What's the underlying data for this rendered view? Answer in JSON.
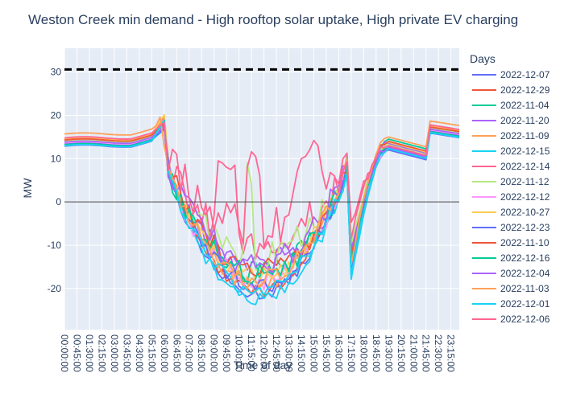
{
  "chart_data": {
    "type": "line",
    "title": "Weston Creek min demand - High rooftop solar uptake, High private EV charging",
    "xlabel": "Time of day",
    "ylabel": "MW",
    "ylim": [
      -29.5,
      35.5
    ],
    "y_ticks": [
      -20,
      -10,
      0,
      10,
      20,
      30
    ],
    "x_tick_labels": [
      "00:00:00",
      "00:45:00",
      "01:30:00",
      "02:15:00",
      "03:00:00",
      "03:45:00",
      "04:30:00",
      "05:15:00",
      "06:00:00",
      "06:45:00",
      "07:30:00",
      "08:15:00",
      "09:00:00",
      "09:45:00",
      "10:30:00",
      "11:15:00",
      "12:00:00",
      "12:45:00",
      "13:30:00",
      "14:15:00",
      "15:00:00",
      "15:45:00",
      "16:30:00",
      "17:15:00",
      "18:00:00",
      "18:45:00",
      "19:30:00",
      "20:15:00",
      "21:00:00",
      "21:45:00",
      "22:30:00",
      "23:15:00"
    ],
    "x_interval_minutes": 15,
    "legend_title": "Days",
    "legend_position": "right",
    "grid": true,
    "reference_line": {
      "y": 30.6,
      "style": "dashed",
      "color": "#000000"
    },
    "zero_line": {
      "y": 0,
      "color": "#444444"
    },
    "series": [
      {
        "name": "2022-12-07",
        "color": "#636efa",
        "base": 12.9,
        "depth": -21.5,
        "eve": 10.0,
        "noise": 1.2
      },
      {
        "name": "2022-12-29",
        "color": "#EF553B",
        "base": 13.9,
        "depth": -20.5,
        "eve": 10.5,
        "noise": 1.5
      },
      {
        "name": "2022-11-04",
        "color": "#00cc96",
        "base": 13.4,
        "depth": -16.5,
        "eve": 12.5,
        "noise": 2.8
      },
      {
        "name": "2022-11-20",
        "color": "#ab63fa",
        "base": 14.2,
        "depth": -15.5,
        "eve": 11.5,
        "noise": 3.5
      },
      {
        "name": "2022-11-09",
        "color": "#FFA15A",
        "base": 14.6,
        "depth": -19.0,
        "eve": 11.0,
        "noise": 2.0
      },
      {
        "name": "2022-12-15",
        "color": "#19d3f3",
        "base": 13.1,
        "depth": -22.5,
        "eve": 10.2,
        "noise": 1.4
      },
      {
        "name": "2022-12-14",
        "color": "#FF6692",
        "base": 14.0,
        "depth": -10.0,
        "eve": 10.8,
        "noise": 4.0
      },
      {
        "name": "2022-11-12",
        "color": "#B6E880",
        "base": 14.1,
        "depth": -13.0,
        "eve": 11.2,
        "noise": 3.8
      },
      {
        "name": "2022-12-12",
        "color": "#FF97FF",
        "base": 13.6,
        "depth": -18.5,
        "eve": 10.5,
        "noise": 2.5
      },
      {
        "name": "2022-10-27",
        "color": "#FECB52",
        "base": 14.4,
        "depth": -17.5,
        "eve": 11.8,
        "noise": 2.2
      },
      {
        "name": "2022-12-23",
        "color": "#636efa",
        "base": 13.3,
        "depth": -19.5,
        "eve": 10.1,
        "noise": 2.0
      },
      {
        "name": "2022-11-10",
        "color": "#EF553B",
        "base": 14.3,
        "depth": -16.0,
        "eve": 12.0,
        "noise": 3.0
      },
      {
        "name": "2022-12-16",
        "color": "#00cc96",
        "base": 13.2,
        "depth": -17.0,
        "eve": 10.4,
        "noise": 2.6
      },
      {
        "name": "2022-12-04",
        "color": "#ab63fa",
        "base": 13.8,
        "depth": -14.5,
        "eve": 10.6,
        "noise": 3.2
      },
      {
        "name": "2022-11-03",
        "color": "#FFA15A",
        "base": 15.7,
        "depth": -18.0,
        "eve": 13.0,
        "noise": 2.4
      },
      {
        "name": "2022-12-01",
        "color": "#19d3f3",
        "base": 13.0,
        "depth": -20.5,
        "eve": 10.3,
        "noise": 1.8
      },
      {
        "name": "2022-12-06",
        "color": "#FF6692",
        "base": 14.8,
        "depth": -6.0,
        "eve": 11.0,
        "noise": 5.0
      }
    ]
  }
}
